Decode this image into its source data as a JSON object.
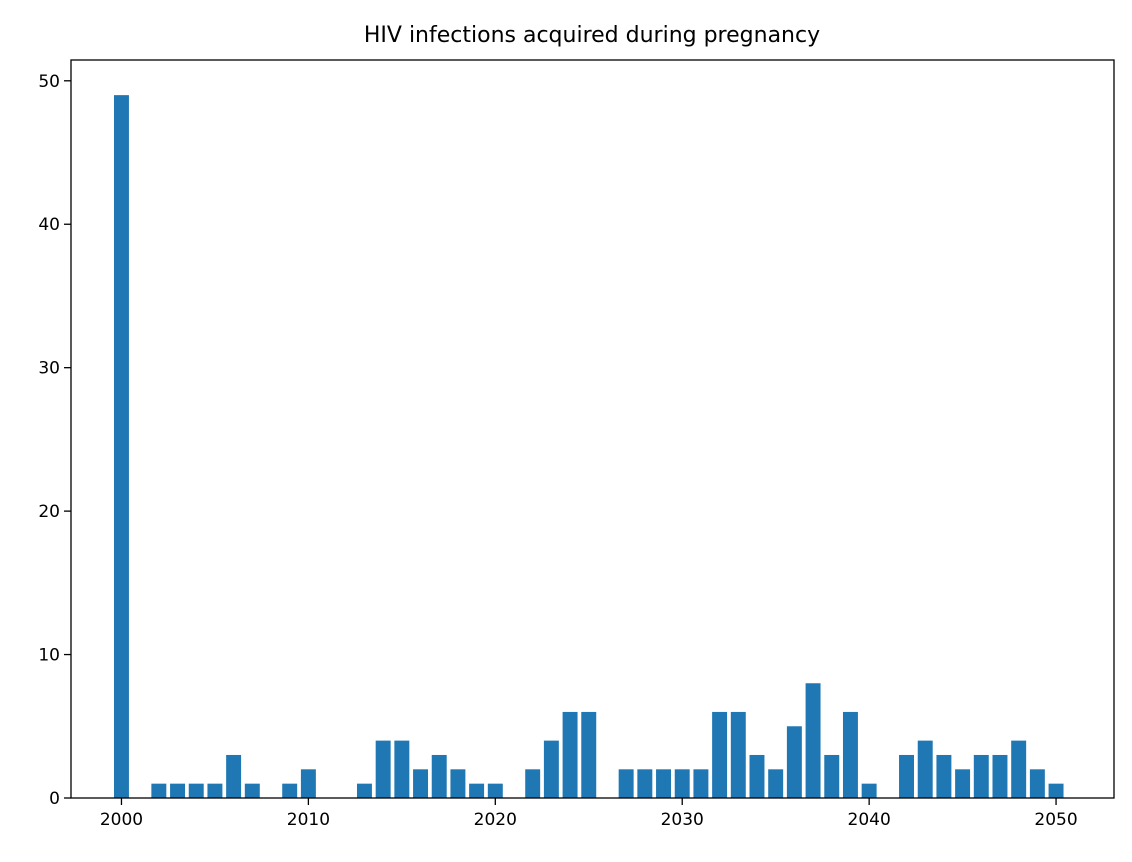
{
  "chart_data": {
    "type": "bar",
    "title": "HIV infections acquired during pregnancy",
    "xlabel": "",
    "ylabel": "",
    "x": [
      2000,
      2001,
      2002,
      2003,
      2004,
      2005,
      2006,
      2007,
      2008,
      2009,
      2010,
      2011,
      2012,
      2013,
      2014,
      2015,
      2016,
      2017,
      2018,
      2019,
      2020,
      2021,
      2022,
      2023,
      2024,
      2025,
      2026,
      2027,
      2028,
      2029,
      2030,
      2031,
      2032,
      2033,
      2034,
      2035,
      2036,
      2037,
      2038,
      2039,
      2040,
      2041,
      2042,
      2043,
      2044,
      2045,
      2046,
      2047,
      2048,
      2049,
      2050
    ],
    "values": [
      49,
      0,
      1,
      1,
      1,
      1,
      3,
      1,
      0,
      1,
      2,
      0,
      0,
      1,
      4,
      4,
      2,
      3,
      2,
      1,
      1,
      0,
      2,
      4,
      6,
      6,
      0,
      2,
      2,
      2,
      2,
      2,
      6,
      6,
      3,
      2,
      5,
      8,
      3,
      6,
      1,
      0,
      3,
      4,
      3,
      2,
      3,
      3,
      4,
      2,
      1
    ],
    "xlim": [
      1997.3,
      2053.1
    ],
    "ylim": [
      0,
      51.45
    ],
    "xticks": [
      2000,
      2010,
      2020,
      2030,
      2040,
      2050
    ],
    "yticks": [
      0,
      10,
      20,
      30,
      40,
      50
    ],
    "bar_color": "#1f77b4",
    "grid": false,
    "legend": "none"
  }
}
